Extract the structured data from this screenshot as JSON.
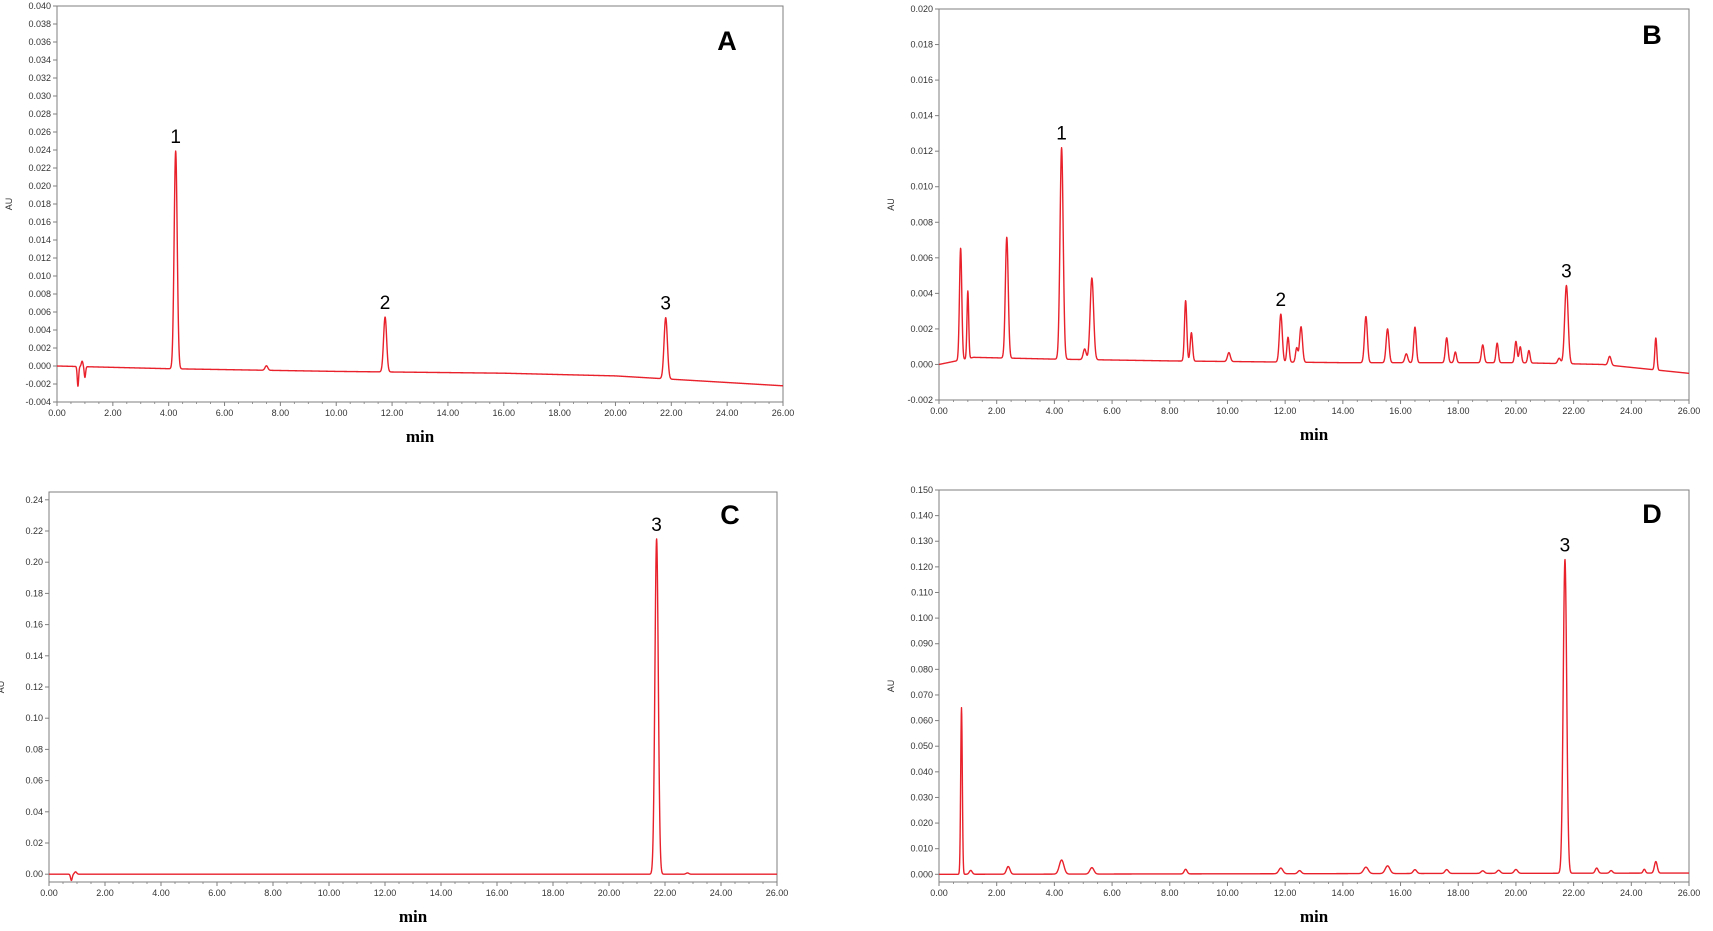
{
  "chart_data": [
    {
      "type": "line",
      "panel": "A",
      "ylabel": "AU",
      "xlabel": "min",
      "xlim": [
        0,
        26
      ],
      "ylim": [
        -0.004,
        0.04
      ],
      "x_ticks": [
        "0.00",
        "2.00",
        "4.00",
        "6.00",
        "8.00",
        "10.00",
        "12.00",
        "14.00",
        "16.00",
        "18.00",
        "20.00",
        "22.00",
        "24.00",
        "26.00"
      ],
      "y_ticks": [
        "-0.004",
        "-0.002",
        "0.000",
        "0.002",
        "0.004",
        "0.006",
        "0.008",
        "0.010",
        "0.012",
        "0.014",
        "0.016",
        "0.018",
        "0.020",
        "0.022",
        "0.024",
        "0.026",
        "0.028",
        "0.030",
        "0.032",
        "0.034",
        "0.036",
        "0.038",
        "0.040"
      ],
      "baseline": [
        [
          0,
          0.0
        ],
        [
          4,
          -0.0003
        ],
        [
          10,
          -0.0006
        ],
        [
          16,
          -0.0008
        ],
        [
          20,
          -0.0011
        ],
        [
          26,
          -0.0022
        ]
      ],
      "peaks": [
        {
          "rt": 0.75,
          "h": -0.0022,
          "w": 0.025
        },
        {
          "rt": 0.9,
          "h": 0.0006,
          "w": 0.03
        },
        {
          "rt": 1.0,
          "h": -0.0012,
          "w": 0.025
        },
        {
          "rt": 4.25,
          "h": 0.0242,
          "w": 0.055
        },
        {
          "rt": 7.5,
          "h": 0.0005,
          "w": 0.05
        },
        {
          "rt": 11.75,
          "h": 0.0061,
          "w": 0.055
        },
        {
          "rt": 21.8,
          "h": 0.0068,
          "w": 0.06
        }
      ],
      "annotations": [
        {
          "label": "1",
          "x": 4.25
        },
        {
          "label": "2",
          "x": 11.75
        },
        {
          "label": "3",
          "x": 21.8
        }
      ]
    },
    {
      "type": "line",
      "panel": "B",
      "ylabel": "AU",
      "xlabel": "min",
      "xlim": [
        0,
        26
      ],
      "ylim": [
        -0.002,
        0.02
      ],
      "x_ticks": [
        "0.00",
        "2.00",
        "4.00",
        "6.00",
        "8.00",
        "10.00",
        "12.00",
        "14.00",
        "16.00",
        "18.00",
        "20.00",
        "22.00",
        "24.00",
        "26.00"
      ],
      "y_ticks": [
        "-0.002",
        "0.000",
        "0.002",
        "0.004",
        "0.006",
        "0.008",
        "0.010",
        "0.012",
        "0.014",
        "0.016",
        "0.018",
        "0.020"
      ],
      "baseline": [
        [
          0,
          0.0
        ],
        [
          0.6,
          0.0002
        ],
        [
          1.2,
          0.0004
        ],
        [
          4,
          0.0003
        ],
        [
          8,
          0.0002
        ],
        [
          14,
          0.0001
        ],
        [
          20,
          0.0001
        ],
        [
          23,
          0.0
        ],
        [
          26,
          -0.0005
        ]
      ],
      "peaks": [
        {
          "rt": 0.75,
          "h": 0.0063,
          "w": 0.04
        },
        {
          "rt": 1.0,
          "h": 0.0038,
          "w": 0.03
        },
        {
          "rt": 2.35,
          "h": 0.0068,
          "w": 0.05
        },
        {
          "rt": 4.25,
          "h": 0.0119,
          "w": 0.055
        },
        {
          "rt": 5.05,
          "h": 0.0006,
          "w": 0.05
        },
        {
          "rt": 5.3,
          "h": 0.0046,
          "w": 0.06
        },
        {
          "rt": 8.55,
          "h": 0.0034,
          "w": 0.04
        },
        {
          "rt": 8.75,
          "h": 0.0016,
          "w": 0.04
        },
        {
          "rt": 10.05,
          "h": 0.0005,
          "w": 0.05
        },
        {
          "rt": 11.85,
          "h": 0.0027,
          "w": 0.05
        },
        {
          "rt": 12.1,
          "h": 0.0014,
          "w": 0.04
        },
        {
          "rt": 12.4,
          "h": 0.0008,
          "w": 0.04
        },
        {
          "rt": 12.55,
          "h": 0.002,
          "w": 0.05
        },
        {
          "rt": 14.8,
          "h": 0.0026,
          "w": 0.05
        },
        {
          "rt": 15.55,
          "h": 0.0019,
          "w": 0.05
        },
        {
          "rt": 16.2,
          "h": 0.0005,
          "w": 0.05
        },
        {
          "rt": 16.5,
          "h": 0.002,
          "w": 0.045
        },
        {
          "rt": 17.6,
          "h": 0.0014,
          "w": 0.045
        },
        {
          "rt": 17.9,
          "h": 0.0006,
          "w": 0.04
        },
        {
          "rt": 18.85,
          "h": 0.001,
          "w": 0.045
        },
        {
          "rt": 19.35,
          "h": 0.0011,
          "w": 0.04
        },
        {
          "rt": 20.0,
          "h": 0.0012,
          "w": 0.04
        },
        {
          "rt": 20.15,
          "h": 0.0009,
          "w": 0.04
        },
        {
          "rt": 20.45,
          "h": 0.0007,
          "w": 0.04
        },
        {
          "rt": 21.5,
          "h": 0.0003,
          "w": 0.05
        },
        {
          "rt": 21.75,
          "h": 0.0044,
          "w": 0.06
        },
        {
          "rt": 23.25,
          "h": 0.0005,
          "w": 0.05
        },
        {
          "rt": 24.85,
          "h": 0.0018,
          "w": 0.035
        }
      ],
      "annotations": [
        {
          "label": "1",
          "x": 4.25
        },
        {
          "label": "2",
          "x": 11.85
        },
        {
          "label": "3",
          "x": 21.75
        }
      ]
    },
    {
      "type": "line",
      "panel": "C",
      "ylabel": "AU",
      "xlabel": "min",
      "xlim": [
        0,
        26
      ],
      "ylim": [
        -0.005,
        0.245
      ],
      "x_ticks": [
        "0.00",
        "2.00",
        "4.00",
        "6.00",
        "8.00",
        "10.00",
        "12.00",
        "14.00",
        "16.00",
        "18.00",
        "20.00",
        "22.00",
        "24.00",
        "26.00"
      ],
      "y_ticks": [
        "0.00",
        "0.02",
        "0.04",
        "0.06",
        "0.08",
        "0.10",
        "0.12",
        "0.14",
        "0.16",
        "0.18",
        "0.20",
        "0.22",
        "0.24"
      ],
      "baseline": [
        [
          0,
          0.0
        ],
        [
          26,
          0.0
        ]
      ],
      "peaks": [
        {
          "rt": 0.8,
          "h": -0.004,
          "w": 0.03
        },
        {
          "rt": 0.95,
          "h": 0.0015,
          "w": 0.04
        },
        {
          "rt": 21.7,
          "h": 0.215,
          "w": 0.06
        },
        {
          "rt": 22.8,
          "h": 0.0008,
          "w": 0.05
        }
      ],
      "annotations": [
        {
          "label": "3",
          "x": 21.7
        }
      ]
    },
    {
      "type": "line",
      "panel": "D",
      "ylabel": "AU",
      "xlabel": "min",
      "xlim": [
        0,
        26
      ],
      "ylim": [
        -0.003,
        0.15
      ],
      "x_ticks": [
        "0.00",
        "2.00",
        "4.00",
        "6.00",
        "8.00",
        "10.00",
        "12.00",
        "14.00",
        "16.00",
        "18.00",
        "20.00",
        "22.00",
        "24.00",
        "26.00"
      ],
      "y_ticks": [
        "0.000",
        "0.010",
        "0.020",
        "0.030",
        "0.040",
        "0.050",
        "0.060",
        "0.070",
        "0.080",
        "0.090",
        "0.100",
        "0.110",
        "0.120",
        "0.130",
        "0.140",
        "0.150"
      ],
      "baseline": [
        [
          0,
          0.0
        ],
        [
          26,
          0.0005
        ]
      ],
      "peaks": [
        {
          "rt": 0.78,
          "h": 0.065,
          "w": 0.028
        },
        {
          "rt": 1.1,
          "h": 0.0015,
          "w": 0.05
        },
        {
          "rt": 2.4,
          "h": 0.003,
          "w": 0.06
        },
        {
          "rt": 4.25,
          "h": 0.0055,
          "w": 0.08
        },
        {
          "rt": 5.3,
          "h": 0.0025,
          "w": 0.07
        },
        {
          "rt": 8.55,
          "h": 0.0018,
          "w": 0.05
        },
        {
          "rt": 11.85,
          "h": 0.0022,
          "w": 0.07
        },
        {
          "rt": 12.5,
          "h": 0.0012,
          "w": 0.06
        },
        {
          "rt": 14.8,
          "h": 0.0025,
          "w": 0.08
        },
        {
          "rt": 15.55,
          "h": 0.003,
          "w": 0.08
        },
        {
          "rt": 16.5,
          "h": 0.0015,
          "w": 0.06
        },
        {
          "rt": 17.6,
          "h": 0.0015,
          "w": 0.06
        },
        {
          "rt": 18.85,
          "h": 0.001,
          "w": 0.06
        },
        {
          "rt": 19.4,
          "h": 0.0012,
          "w": 0.06
        },
        {
          "rt": 20.0,
          "h": 0.0015,
          "w": 0.06
        },
        {
          "rt": 21.7,
          "h": 0.1225,
          "w": 0.06
        },
        {
          "rt": 22.8,
          "h": 0.002,
          "w": 0.05
        },
        {
          "rt": 23.3,
          "h": 0.001,
          "w": 0.05
        },
        {
          "rt": 24.45,
          "h": 0.0015,
          "w": 0.04
        },
        {
          "rt": 24.85,
          "h": 0.0045,
          "w": 0.05
        }
      ],
      "annotations": [
        {
          "label": "3",
          "x": 21.7
        }
      ]
    }
  ],
  "style": {
    "trace_color": "#e8212b",
    "axis_color": "#7f7f7f",
    "text_color": "#000000"
  }
}
